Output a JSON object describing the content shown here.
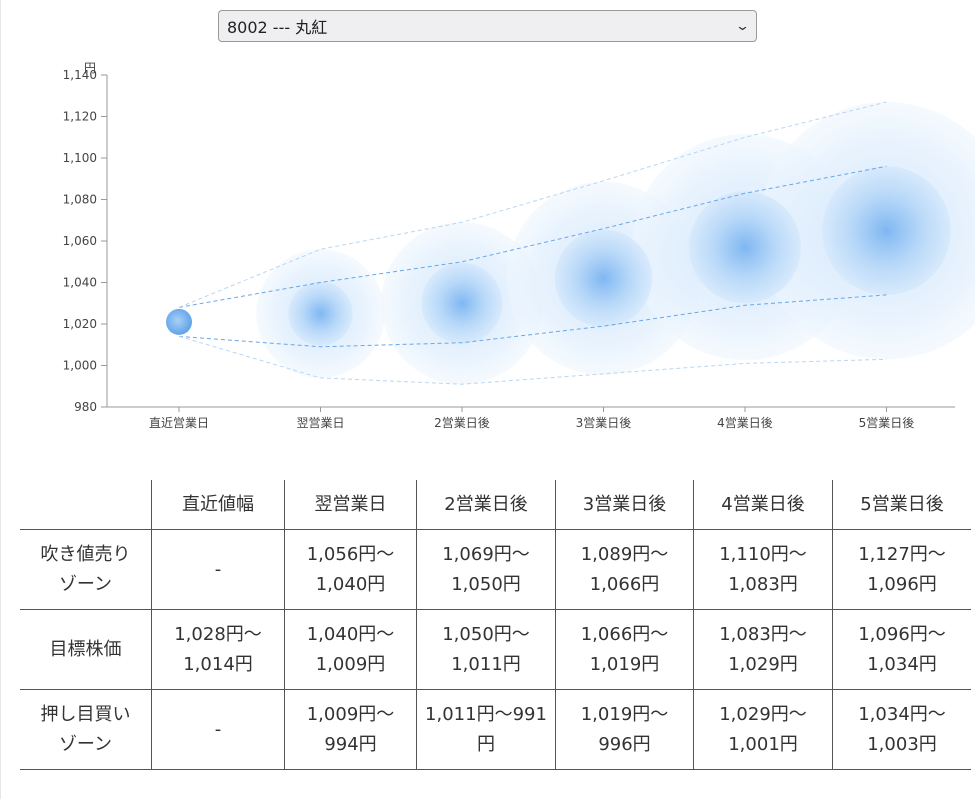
{
  "selector": {
    "value": "8002 --- 丸紅"
  },
  "chart_data": {
    "type": "bubble-forecast",
    "ylabel": "円",
    "ylim": [
      980,
      1140
    ],
    "yticks": [
      "1,140",
      "1,120",
      "1,100",
      "1,080",
      "1,060",
      "1,040",
      "1,020",
      "1,000",
      "980"
    ],
    "ytick_values": [
      1140,
      1120,
      1100,
      1080,
      1060,
      1040,
      1020,
      1000,
      980
    ],
    "categories": [
      "直近営業日",
      "翌営業日",
      "2営業日後",
      "3営業日後",
      "4営業日後",
      "5営業日後"
    ],
    "center": [
      1021,
      1025,
      1030,
      1042,
      1057,
      1065
    ],
    "inner_upper": [
      1028,
      1040,
      1050,
      1066,
      1083,
      1096
    ],
    "inner_lower": [
      1014,
      1009,
      1011,
      1019,
      1029,
      1034
    ],
    "outer_upper": [
      1028,
      1056,
      1069,
      1089,
      1110,
      1127
    ],
    "outer_lower": [
      1014,
      994,
      991,
      996,
      1001,
      1003
    ]
  },
  "table": {
    "corner": "",
    "columns": [
      "直近値幅",
      "翌営業日",
      "2営業日後",
      "3営業日後",
      "4営業日後",
      "5営業日後"
    ],
    "rows": [
      {
        "label": [
          "吹き値売り",
          "ゾーン"
        ],
        "cells": [
          [
            "-"
          ],
          [
            "1,056円～",
            "1,040円"
          ],
          [
            "1,069円～",
            "1,050円"
          ],
          [
            "1,089円～",
            "1,066円"
          ],
          [
            "1,110円～",
            "1,083円"
          ],
          [
            "1,127円～",
            "1,096円"
          ]
        ]
      },
      {
        "label": [
          "目標株価"
        ],
        "cells": [
          [
            "1,028円～",
            "1,014円"
          ],
          [
            "1,040円～",
            "1,009円"
          ],
          [
            "1,050円～",
            "1,011円"
          ],
          [
            "1,066円～",
            "1,019円"
          ],
          [
            "1,083円～",
            "1,029円"
          ],
          [
            "1,096円～",
            "1,034円"
          ]
        ]
      },
      {
        "label": [
          "押し目買い",
          "ゾーン"
        ],
        "cells": [
          [
            "-"
          ],
          [
            "1,009円～",
            "994円"
          ],
          [
            "1,011円～991",
            "円"
          ],
          [
            "1,019円～",
            "996円"
          ],
          [
            "1,029円～",
            "1,001円"
          ],
          [
            "1,034円～",
            "1,003円"
          ]
        ]
      }
    ]
  }
}
